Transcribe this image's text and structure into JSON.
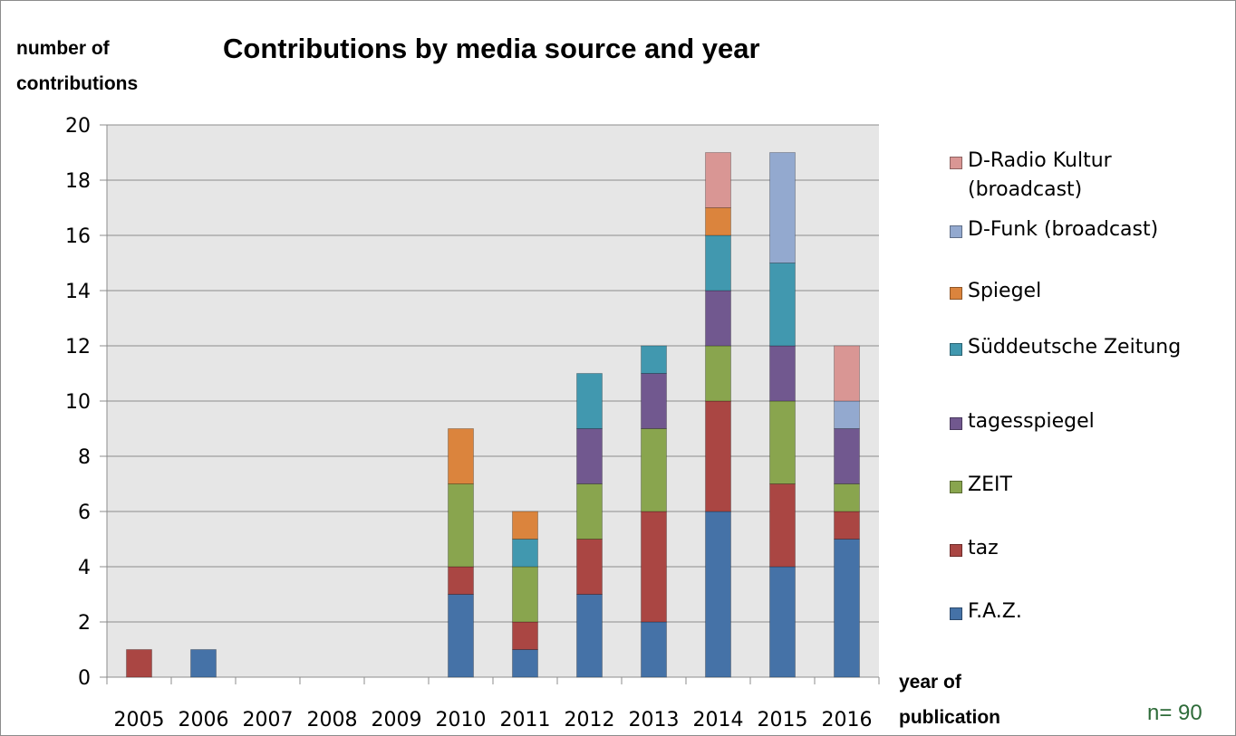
{
  "chart_data": {
    "type": "bar",
    "stacked": true,
    "title": "Contributions by media source and year",
    "ylabel": "number of contributions",
    "xlabel": "year of publication",
    "note": "n= 90",
    "ylim": [
      0,
      20
    ],
    "ytick_step": 2,
    "grid": true,
    "legend_position": "right",
    "categories": [
      "2005",
      "2006",
      "2007",
      "2008",
      "2009",
      "2010",
      "2011",
      "2012",
      "2013",
      "2014",
      "2015",
      "2016"
    ],
    "series": [
      {
        "name": "F.A.Z.",
        "color": "#4572a7",
        "values": [
          0,
          1,
          0,
          0,
          0,
          3,
          1,
          3,
          2,
          6,
          4,
          5
        ]
      },
      {
        "name": "taz",
        "color": "#aa4643",
        "values": [
          1,
          0,
          0,
          0,
          0,
          1,
          1,
          2,
          4,
          4,
          3,
          1
        ]
      },
      {
        "name": "ZEIT",
        "color": "#89a54e",
        "values": [
          0,
          0,
          0,
          0,
          0,
          3,
          2,
          2,
          3,
          2,
          3,
          1
        ]
      },
      {
        "name": "tagesspiegel",
        "color": "#71588f",
        "values": [
          0,
          0,
          0,
          0,
          0,
          0,
          0,
          2,
          2,
          2,
          2,
          2
        ]
      },
      {
        "name": "Süddeutsche Zeitung",
        "color": "#4198af",
        "values": [
          0,
          0,
          0,
          0,
          0,
          0,
          1,
          2,
          1,
          2,
          3,
          0
        ]
      },
      {
        "name": "Spiegel",
        "color": "#db843d",
        "values": [
          0,
          0,
          0,
          0,
          0,
          2,
          1,
          0,
          0,
          1,
          0,
          0
        ]
      },
      {
        "name": "D-Funk (broadcast)",
        "color": "#93a9cf",
        "values": [
          0,
          0,
          0,
          0,
          0,
          0,
          0,
          0,
          0,
          0,
          4,
          1
        ]
      },
      {
        "name": "D-Radio Kultur (broadcast)",
        "color": "#d99694",
        "values": [
          0,
          0,
          0,
          0,
          0,
          0,
          0,
          0,
          0,
          2,
          0,
          2
        ]
      }
    ],
    "legend_order": [
      "D-Radio Kultur (broadcast)",
      "D-Funk (broadcast)",
      "Spiegel",
      "Süddeutsche Zeitung",
      "tagesspiegel",
      "ZEIT",
      "taz",
      "F.A.Z."
    ],
    "colors": {
      "plot_background": "#e6e6e6",
      "gridline": "#8c8c8c",
      "note": "#2e6b39"
    }
  }
}
